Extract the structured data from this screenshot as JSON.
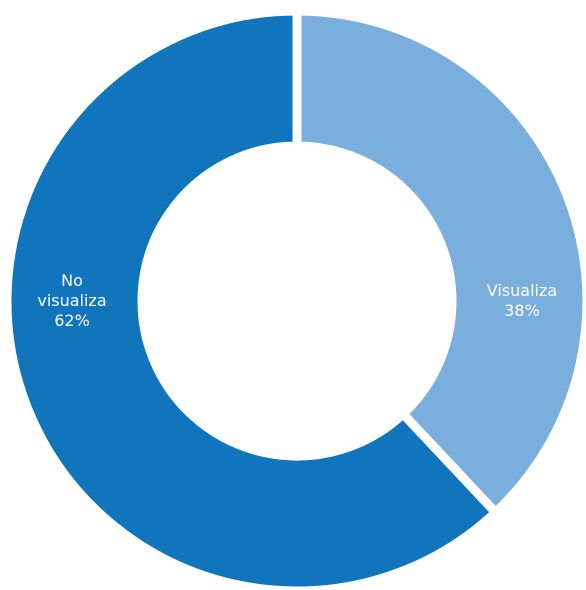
{
  "chart_data": {
    "type": "donut",
    "categories": [
      "Visualiza",
      "No visualiza"
    ],
    "values": [
      38,
      62
    ],
    "value_labels": [
      "38%",
      "62%"
    ],
    "colors": [
      "#7aaedc",
      "#1075bd"
    ]
  }
}
